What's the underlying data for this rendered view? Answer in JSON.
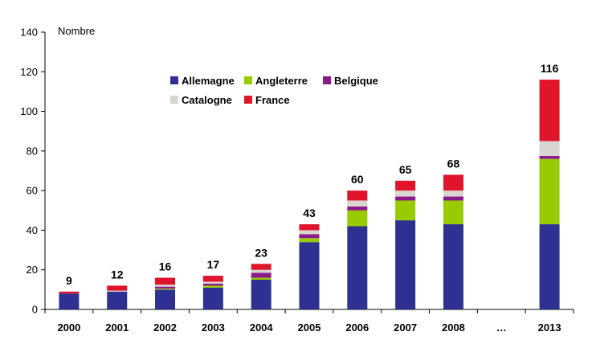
{
  "chart_data": {
    "type": "bar",
    "stacked": true,
    "unit_label": "Nombre",
    "categories": [
      "2000",
      "2001",
      "2002",
      "2003",
      "2004",
      "2005",
      "2006",
      "2007",
      "2008",
      "…",
      "2013"
    ],
    "ylim": [
      0,
      140
    ],
    "yticks": [
      0,
      20,
      40,
      60,
      80,
      100,
      120,
      140
    ],
    "grid": false,
    "legend_position": "top-left inside plot",
    "series": [
      {
        "name": "Allemagne",
        "color": "#2E3192",
        "values": [
          8,
          9,
          10,
          11,
          15,
          34,
          42,
          45,
          43,
          null,
          43
        ]
      },
      {
        "name": "Angleterre",
        "color": "#99CC00",
        "values": [
          0,
          0,
          0.5,
          1,
          1,
          2,
          8,
          10,
          12,
          null,
          33
        ]
      },
      {
        "name": "Belgique",
        "color": "#8B1A8B",
        "values": [
          0,
          0,
          1,
          1,
          2.5,
          2,
          2,
          2,
          2,
          null,
          1.5
        ]
      },
      {
        "name": "Catalogne",
        "color": "#D9D5D0",
        "values": [
          0,
          0.5,
          1,
          1,
          1.5,
          2,
          3,
          3,
          3,
          null,
          7.5
        ]
      },
      {
        "name": "France",
        "color": "#E0142A",
        "values": [
          1,
          2.5,
          3.5,
          3,
          3,
          3,
          5,
          5,
          8,
          null,
          31
        ]
      }
    ],
    "totals": [
      "9",
      "12",
      "16",
      "17",
      "23",
      "43",
      "60",
      "65",
      "68",
      "",
      "116"
    ]
  }
}
